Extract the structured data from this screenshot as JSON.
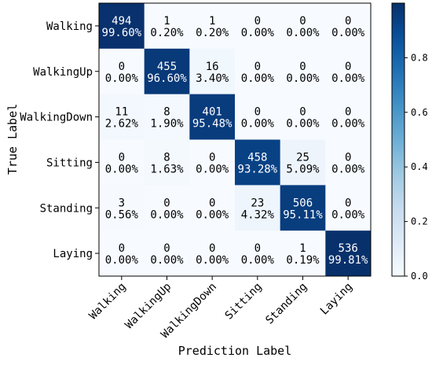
{
  "chart_data": {
    "type": "heatmap",
    "title": "",
    "xlabel": "Prediction Label",
    "ylabel": "True Label",
    "x_categories": [
      "Walking",
      "WalkingUp",
      "WalkingDown",
      "Sitting",
      "Standing",
      "Laying"
    ],
    "y_categories": [
      "Walking",
      "WalkingUp",
      "WalkingDown",
      "Sitting",
      "Standing",
      "Laying"
    ],
    "counts": [
      [
        494,
        1,
        1,
        0,
        0,
        0
      ],
      [
        0,
        455,
        16,
        0,
        0,
        0
      ],
      [
        11,
        8,
        401,
        0,
        0,
        0
      ],
      [
        0,
        8,
        0,
        458,
        25,
        0
      ],
      [
        3,
        0,
        0,
        23,
        506,
        0
      ],
      [
        0,
        0,
        0,
        0,
        1,
        536
      ]
    ],
    "percent_labels": [
      [
        "99.60%",
        "0.20%",
        "0.20%",
        "0.00%",
        "0.00%",
        "0.00%"
      ],
      [
        "0.00%",
        "96.60%",
        "3.40%",
        "0.00%",
        "0.00%",
        "0.00%"
      ],
      [
        "2.62%",
        "1.90%",
        "95.48%",
        "0.00%",
        "0.00%",
        "0.00%"
      ],
      [
        "0.00%",
        "1.63%",
        "0.00%",
        "93.28%",
        "5.09%",
        "0.00%"
      ],
      [
        "0.56%",
        "0.00%",
        "0.00%",
        "4.32%",
        "95.11%",
        "0.00%"
      ],
      [
        "0.00%",
        "0.00%",
        "0.00%",
        "0.00%",
        "0.19%",
        "99.81%"
      ]
    ],
    "fractions": [
      [
        0.996,
        0.002,
        0.002,
        0.0,
        0.0,
        0.0
      ],
      [
        0.0,
        0.966,
        0.034,
        0.0,
        0.0,
        0.0
      ],
      [
        0.0262,
        0.019,
        0.9548,
        0.0,
        0.0,
        0.0
      ],
      [
        0.0,
        0.0163,
        0.0,
        0.9328,
        0.0509,
        0.0
      ],
      [
        0.0056,
        0.0,
        0.0,
        0.0432,
        0.9511,
        0.0
      ],
      [
        0.0,
        0.0,
        0.0,
        0.0,
        0.0019,
        0.9981
      ]
    ],
    "colorbar": {
      "range": [
        0,
        1
      ],
      "ticks": [
        "0.0",
        "0.2",
        "0.4",
        "0.6",
        "0.8"
      ],
      "colormap": "Blues",
      "low_color": "#f7fbff",
      "high_color": "#08306b"
    },
    "grid": false,
    "legend": "colorbar right"
  }
}
